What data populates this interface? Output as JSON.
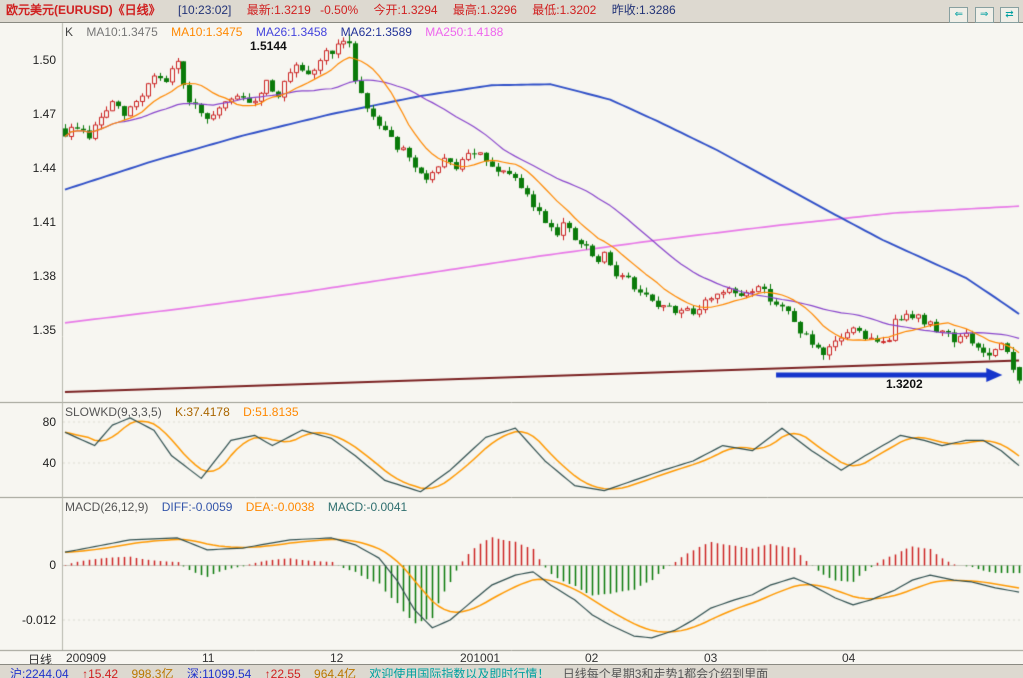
{
  "title_bar": {
    "symbol": "欧元美元(EURUSD)《日线》",
    "time": "[10:23:02]",
    "last": "最新:1.3219",
    "change": "-0.50%",
    "open": "今开:1.3294",
    "high": "最高:1.3296",
    "low": "最低:1.3202",
    "prev_close": "昨收:1.3286",
    "nav_back": "⇐",
    "nav_forward": "⇒",
    "nav_toggle": "⇄"
  },
  "main_chart": {
    "header": {
      "k": "K",
      "ma10a": "MA10:1.3475",
      "ma10b": "MA10:1.3475",
      "ma26": "MA26:1.3458",
      "ma62": "MA62:1.3589",
      "ma250": "MA250:1.4188"
    },
    "y_ticks": [
      "1.50",
      "1.47",
      "1.44",
      "1.41",
      "1.38",
      "1.35"
    ],
    "annotation_high": "1.5144",
    "annotation_low": "1.3202"
  },
  "kd_panel": {
    "header": {
      "name": "SLOWKD(9,3,3,5)",
      "k": "K:37.4178",
      "d": "D:51.8135"
    },
    "y_ticks": [
      "80",
      "40"
    ]
  },
  "macd_panel": {
    "header": {
      "name": "MACD(26,12,9)",
      "diff": "DIFF:-0.0059",
      "dea": "DEA:-0.0038",
      "macd": "MACD:-0.0041"
    },
    "y_ticks": [
      "0",
      "-0.012"
    ]
  },
  "x_axis": {
    "period": "日线",
    "labels": [
      "200909",
      "11",
      "12",
      "201001",
      "02",
      "03",
      "04"
    ]
  },
  "status_bar": {
    "sh_index": "沪:2244.04",
    "sh_change": "↑15.42",
    "sh_volume": "998.3亿",
    "sz_index": "深:11099.54",
    "sz_change": "↑22.55",
    "sz_volume": "964.4亿",
    "notice": "欢迎使用国际指数以及即时行情！",
    "tip": "日线每个星期3和走势1都会介绍到里面"
  },
  "colors": {
    "up_candle": "#cc2222",
    "down_candle": "#0a7a0a",
    "ma10": "#ff8800",
    "ma26": "#8844cc",
    "ma62": "#3050c8",
    "ma250": "#e87ae8",
    "trendline": "#7a2020",
    "arrow": "#1535cc",
    "k_line": "#2f4f4f",
    "d_line": "#ff9900",
    "diff_line": "#2f4f4f",
    "dea_line": "#ff9900",
    "hist_pos": "#cc2222",
    "hist_neg": "#0a7a0a",
    "quote_red": "#d02020",
    "quote_navy": "#223377"
  },
  "chart_data": [
    {
      "type": "candlestick",
      "title": "EURUSD daily, late Sep 2009 - late Apr 2010",
      "count": 162,
      "ylim": [
        1.31,
        1.52
      ],
      "y_ticks": [
        1.5,
        1.47,
        1.44,
        1.41,
        1.38,
        1.35
      ],
      "quote": {
        "last": 1.3219,
        "change_pct": -0.5,
        "open": 1.3294,
        "high": 1.3296,
        "low": 1.3202,
        "prev_close": 1.3286
      },
      "ma_current": {
        "ma10": 1.3475,
        "ma26": 1.3458,
        "ma62": 1.3589,
        "ma250": 1.4188
      },
      "x_month_ticks": [
        [
          1,
          "200909"
        ],
        [
          24,
          "11"
        ],
        [
          46,
          "12"
        ],
        [
          68,
          "201001"
        ],
        [
          89,
          "02"
        ],
        [
          109,
          "03"
        ],
        [
          132,
          "04"
        ]
      ],
      "close_anchors": [
        [
          0,
          1.459
        ],
        [
          2,
          1.463
        ],
        [
          4,
          1.4575
        ],
        [
          6,
          1.468
        ],
        [
          8,
          1.476
        ],
        [
          10,
          1.469
        ],
        [
          13,
          1.481
        ],
        [
          15,
          1.492
        ],
        [
          17,
          1.487
        ],
        [
          19,
          1.499
        ],
        [
          20,
          1.484
        ],
        [
          22,
          1.473
        ],
        [
          24,
          1.465
        ],
        [
          26,
          1.472
        ],
        [
          28,
          1.478
        ],
        [
          29,
          1.481
        ],
        [
          31,
          1.474
        ],
        [
          33,
          1.483
        ],
        [
          34,
          1.488
        ],
        [
          36,
          1.481
        ],
        [
          38,
          1.492
        ],
        [
          39,
          1.495
        ],
        [
          41,
          1.49
        ],
        [
          43,
          1.5
        ],
        [
          44,
          1.504
        ],
        [
          46,
          1.507
        ],
        [
          48,
          1.51
        ],
        [
          49,
          1.49
        ],
        [
          51,
          1.473
        ],
        [
          53,
          1.465
        ],
        [
          54,
          1.462
        ],
        [
          56,
          1.452
        ],
        [
          58,
          1.446
        ],
        [
          59,
          1.438
        ],
        [
          61,
          1.435
        ],
        [
          63,
          1.439
        ],
        [
          64,
          1.443
        ],
        [
          66,
          1.441
        ],
        [
          68,
          1.446
        ],
        [
          69,
          1.449
        ],
        [
          71,
          1.443
        ],
        [
          73,
          1.436
        ],
        [
          74,
          1.44
        ],
        [
          76,
          1.432
        ],
        [
          78,
          1.424
        ],
        [
          79,
          1.419
        ],
        [
          81,
          1.411
        ],
        [
          83,
          1.405
        ],
        [
          84,
          1.409
        ],
        [
          86,
          1.4
        ],
        [
          88,
          1.395
        ],
        [
          90,
          1.387
        ],
        [
          91,
          1.391
        ],
        [
          93,
          1.382
        ],
        [
          95,
          1.378
        ],
        [
          96,
          1.373
        ],
        [
          98,
          1.368
        ],
        [
          100,
          1.361
        ],
        [
          101,
          1.365
        ],
        [
          103,
          1.359
        ],
        [
          105,
          1.363
        ],
        [
          106,
          1.36
        ],
        [
          108,
          1.365
        ],
        [
          110,
          1.371
        ],
        [
          112,
          1.373
        ],
        [
          113,
          1.368
        ],
        [
          115,
          1.371
        ],
        [
          117,
          1.375
        ],
        [
          118,
          1.371
        ],
        [
          120,
          1.365
        ],
        [
          122,
          1.359
        ],
        [
          123,
          1.354
        ],
        [
          125,
          1.346
        ],
        [
          127,
          1.338
        ],
        [
          128,
          1.334
        ],
        [
          130,
          1.343
        ],
        [
          132,
          1.349
        ],
        [
          134,
          1.351
        ],
        [
          135,
          1.346
        ],
        [
          137,
          1.342
        ],
        [
          139,
          1.346
        ],
        [
          140,
          1.354
        ],
        [
          142,
          1.361
        ],
        [
          144,
          1.357
        ],
        [
          145,
          1.354
        ],
        [
          147,
          1.351
        ],
        [
          149,
          1.348
        ],
        [
          150,
          1.345
        ],
        [
          152,
          1.3465
        ],
        [
          154,
          1.34
        ],
        [
          156,
          1.335
        ],
        [
          158,
          1.3405
        ],
        [
          159,
          1.337
        ],
        [
          160,
          1.3286
        ],
        [
          161,
          1.3219
        ]
      ],
      "overlays": {
        "ma62_anchors": [
          [
            0,
            1.428
          ],
          [
            15,
            1.444
          ],
          [
            30,
            1.458
          ],
          [
            45,
            1.47
          ],
          [
            60,
            1.48
          ],
          [
            72,
            1.486
          ],
          [
            82,
            1.4865
          ],
          [
            92,
            1.478
          ],
          [
            100,
            1.466
          ],
          [
            110,
            1.45
          ],
          [
            120,
            1.432
          ],
          [
            130,
            1.414
          ],
          [
            138,
            1.4
          ],
          [
            146,
            1.388
          ],
          [
            152,
            1.379
          ],
          [
            157,
            1.368
          ],
          [
            161,
            1.3589
          ]
        ],
        "ma250_anchors": [
          [
            0,
            1.354
          ],
          [
            20,
            1.362
          ],
          [
            40,
            1.371
          ],
          [
            60,
            1.381
          ],
          [
            80,
            1.391
          ],
          [
            100,
            1.4
          ],
          [
            120,
            1.408
          ],
          [
            140,
            1.415
          ],
          [
            161,
            1.4188
          ]
        ],
        "trendline": {
          "from": [
            0,
            1.3155
          ],
          "to": [
            161,
            1.333
          ]
        },
        "arrow": {
          "from_index": 120,
          "to_index": 157,
          "price": 1.325
        },
        "peak": {
          "index": 48,
          "price": 1.5144,
          "label": "1.5144"
        },
        "low_label": {
          "index": 148,
          "price": 1.3202,
          "label": "1.3202"
        },
        "last_candle": {
          "open": 1.3294,
          "high": 1.3296,
          "low": 1.3202,
          "close": 1.3219
        }
      }
    },
    {
      "type": "line",
      "title": "SLOWKD(9,3,3,5)",
      "y_ticks": [
        80,
        40
      ],
      "series": [
        {
          "name": "K",
          "current": 37.4178,
          "anchors": [
            [
              0,
              70
            ],
            [
              5,
              57
            ],
            [
              8,
              77
            ],
            [
              11,
              84
            ],
            [
              15,
              72
            ],
            [
              18,
              47
            ],
            [
              23,
              25
            ],
            [
              28,
              62
            ],
            [
              32,
              67
            ],
            [
              35,
              57
            ],
            [
              40,
              72
            ],
            [
              45,
              64
            ],
            [
              49,
              47
            ],
            [
              54,
              23
            ],
            [
              60,
              12
            ],
            [
              65,
              33
            ],
            [
              71,
              65
            ],
            [
              76,
              74
            ],
            [
              81,
              42
            ],
            [
              86,
              18
            ],
            [
              91,
              13
            ],
            [
              96,
              23
            ],
            [
              101,
              33
            ],
            [
              106,
              42
            ],
            [
              111,
              57
            ],
            [
              116,
              52
            ],
            [
              121,
              74
            ],
            [
              126,
              52
            ],
            [
              131,
              33
            ],
            [
              135,
              47
            ],
            [
              138,
              57
            ],
            [
              141,
              67
            ],
            [
              145,
              62
            ],
            [
              148,
              57
            ],
            [
              152,
              62
            ],
            [
              155,
              62
            ],
            [
              158,
              52
            ],
            [
              161,
              37.4
            ]
          ]
        },
        {
          "name": "D",
          "current": 51.8135,
          "derived": "sma5_of_K"
        }
      ]
    },
    {
      "type": "bar+line",
      "title": "MACD(26,12,9)",
      "y_ticks": [
        0,
        -0.012
      ],
      "series": [
        {
          "name": "DIFF",
          "current": -0.0059,
          "anchors": [
            [
              0,
              0.0028
            ],
            [
              5,
              0.004
            ],
            [
              11,
              0.0055
            ],
            [
              19,
              0.0059
            ],
            [
              24,
              0.0033
            ],
            [
              30,
              0.0037
            ],
            [
              38,
              0.0055
            ],
            [
              45,
              0.0059
            ],
            [
              49,
              0.0044
            ],
            [
              53,
              0.0015
            ],
            [
              56,
              -0.0033
            ],
            [
              59,
              -0.0098
            ],
            [
              62,
              -0.0137
            ],
            [
              65,
              -0.012
            ],
            [
              69,
              -0.0076
            ],
            [
              72,
              -0.0044
            ],
            [
              76,
              -0.0022
            ],
            [
              79,
              -0.0015
            ],
            [
              82,
              -0.0044
            ],
            [
              86,
              -0.0076
            ],
            [
              89,
              -0.0109
            ],
            [
              92,
              -0.0131
            ],
            [
              96,
              -0.0155
            ],
            [
              99,
              -0.0159
            ],
            [
              103,
              -0.0142
            ],
            [
              106,
              -0.012
            ],
            [
              109,
              -0.0094
            ],
            [
              113,
              -0.0076
            ],
            [
              116,
              -0.0065
            ],
            [
              119,
              -0.0044
            ],
            [
              123,
              -0.0028
            ],
            [
              126,
              -0.0044
            ],
            [
              130,
              -0.0072
            ],
            [
              133,
              -0.0087
            ],
            [
              136,
              -0.0076
            ],
            [
              140,
              -0.0055
            ],
            [
              143,
              -0.0033
            ],
            [
              146,
              -0.0022
            ],
            [
              150,
              -0.0033
            ],
            [
              153,
              -0.0037
            ],
            [
              157,
              -0.005
            ],
            [
              161,
              -0.0059
            ]
          ]
        },
        {
          "name": "DEA",
          "current": -0.0038,
          "derived": "ema9_of_DIFF"
        },
        {
          "name": "MACD",
          "current": -0.0041,
          "derived": "(DIFF-DEA)*2"
        }
      ]
    }
  ]
}
